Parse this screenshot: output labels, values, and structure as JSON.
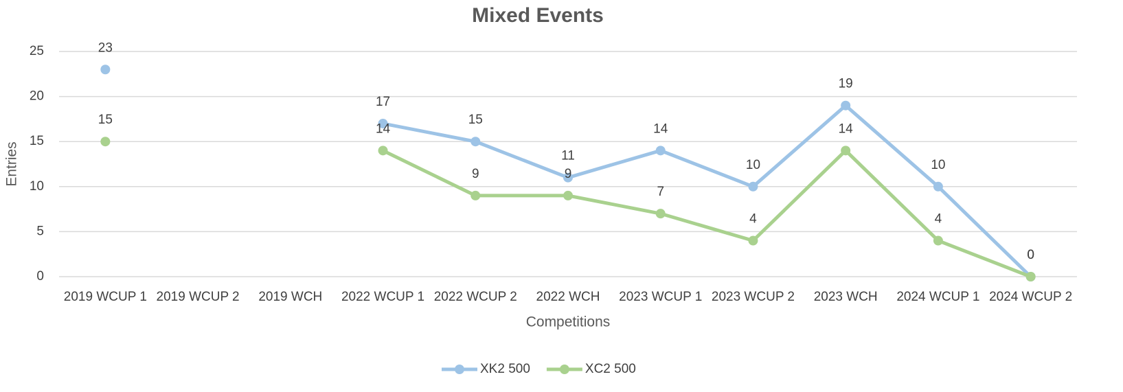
{
  "chart_data": {
    "type": "line",
    "title": "Mixed Events",
    "x_label": "Competitions",
    "y_label": "Entries",
    "categories": [
      "2019 WCUP 1",
      "2019 WCUP 2",
      "2019 WCH",
      "2022 WCUP 1",
      "2022 WCUP 2",
      "2022 WCH",
      "2023 WCUP 1",
      "2023 WCUP 2",
      "2023 WCH",
      "2024 WCUP 1",
      "2024 WCUP 2"
    ],
    "series": [
      {
        "name": "XK2 500",
        "color": "#9dc3e6",
        "values": [
          23,
          null,
          null,
          17,
          15,
          11,
          14,
          10,
          19,
          10,
          0
        ]
      },
      {
        "name": "XC2 500",
        "color": "#a9d18e",
        "values": [
          15,
          null,
          null,
          14,
          9,
          9,
          7,
          4,
          14,
          4,
          0
        ]
      }
    ],
    "ylim": [
      0,
      25
    ],
    "yticks": [
      0,
      5,
      10,
      15,
      20,
      25
    ],
    "grid": true,
    "legend": "bottom"
  }
}
